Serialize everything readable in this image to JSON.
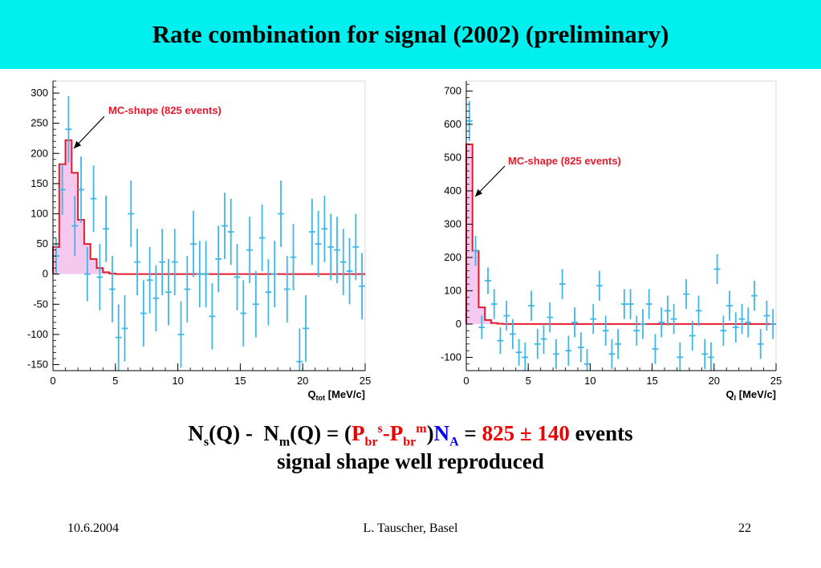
{
  "title": "Rate combination for signal (2002) (preliminary)",
  "formula": {
    "ns": "N",
    "ns_sub": "s",
    "ns_q": "(Q) -  ",
    "nm": "N",
    "nm_sub": "m",
    "nm_q": "(Q) = (",
    "p1": "P",
    "p1_sub": "br",
    "p1_sup": "s",
    "dash": "-",
    "p2": "P",
    "p2_sub": "br",
    "p2_sup": "m",
    "close": ")",
    "na": "N",
    "na_sub": "A",
    "eq": " = ",
    "value": "825 ± 140",
    "unit": " events"
  },
  "subline": "signal shape well reproduced",
  "footer": {
    "date": "10.6.2004",
    "author": "L. Tauscher, Basel",
    "page": "22"
  },
  "colors": {
    "title_bg": "#00f0f0",
    "data": "#3cb8e8",
    "mc_line": "#e8192c",
    "mc_fill": "#f5c8f0"
  },
  "chart_data": [
    {
      "type": "histogram",
      "xlabel_main": "Q",
      "xlabel_sub": "tot",
      "xlabel_unit": " [MeV/c]",
      "xlim": [
        0,
        25
      ],
      "ylim": [
        -160,
        320
      ],
      "xticks": [
        0,
        5,
        10,
        15,
        20,
        25
      ],
      "yticks": [
        300,
        250,
        200,
        150,
        100,
        50,
        0,
        -50,
        -100,
        -150
      ],
      "bin_width": 0.5,
      "annotation": "MC-shape (825 events)",
      "mc_shape": [
        {
          "x": 0.0,
          "y": 45
        },
        {
          "x": 0.5,
          "y": 182
        },
        {
          "x": 1.0,
          "y": 222
        },
        {
          "x": 1.5,
          "y": 168
        },
        {
          "x": 2.0,
          "y": 90
        },
        {
          "x": 2.5,
          "y": 50
        },
        {
          "x": 3.0,
          "y": 25
        },
        {
          "x": 3.5,
          "y": 10
        },
        {
          "x": 4.0,
          "y": 3
        },
        {
          "x": 4.5,
          "y": 1
        }
      ],
      "data": [
        {
          "x": 0.25,
          "y": 30,
          "e": 30
        },
        {
          "x": 0.75,
          "y": 140,
          "e": 42
        },
        {
          "x": 1.25,
          "y": 240,
          "e": 55
        },
        {
          "x": 1.75,
          "y": 80,
          "e": 50
        },
        {
          "x": 2.25,
          "y": 140,
          "e": 55
        },
        {
          "x": 2.75,
          "y": 0,
          "e": 45
        },
        {
          "x": 3.25,
          "y": 125,
          "e": 55
        },
        {
          "x": 3.75,
          "y": -5,
          "e": 55
        },
        {
          "x": 4.25,
          "y": 75,
          "e": 55
        },
        {
          "x": 4.75,
          "y": -25,
          "e": 55
        },
        {
          "x": 5.25,
          "y": -105,
          "e": 55
        },
        {
          "x": 5.75,
          "y": -90,
          "e": 55
        },
        {
          "x": 6.25,
          "y": 100,
          "e": 55
        },
        {
          "x": 6.75,
          "y": 20,
          "e": 55
        },
        {
          "x": 7.25,
          "y": -65,
          "e": 55
        },
        {
          "x": 7.75,
          "y": -10,
          "e": 55
        },
        {
          "x": 8.25,
          "y": -40,
          "e": 55
        },
        {
          "x": 8.75,
          "y": 20,
          "e": 55
        },
        {
          "x": 9.25,
          "y": -30,
          "e": 55
        },
        {
          "x": 9.75,
          "y": 20,
          "e": 55
        },
        {
          "x": 10.25,
          "y": -100,
          "e": 55
        },
        {
          "x": 10.75,
          "y": -25,
          "e": 55
        },
        {
          "x": 11.25,
          "y": 50,
          "e": 55
        },
        {
          "x": 11.75,
          "y": 0,
          "e": 55
        },
        {
          "x": 12.25,
          "y": 0,
          "e": 55
        },
        {
          "x": 12.75,
          "y": -70,
          "e": 55
        },
        {
          "x": 13.25,
          "y": 25,
          "e": 55
        },
        {
          "x": 13.75,
          "y": 80,
          "e": 55
        },
        {
          "x": 14.25,
          "y": 70,
          "e": 55
        },
        {
          "x": 14.75,
          "y": -5,
          "e": 55
        },
        {
          "x": 15.25,
          "y": -65,
          "e": 55
        },
        {
          "x": 15.75,
          "y": 40,
          "e": 55
        },
        {
          "x": 16.25,
          "y": -50,
          "e": 55
        },
        {
          "x": 16.75,
          "y": 60,
          "e": 55
        },
        {
          "x": 17.25,
          "y": -30,
          "e": 55
        },
        {
          "x": 17.75,
          "y": 0,
          "e": 55
        },
        {
          "x": 18.25,
          "y": 100,
          "e": 55
        },
        {
          "x": 18.75,
          "y": -25,
          "e": 55
        },
        {
          "x": 19.25,
          "y": 28,
          "e": 55
        },
        {
          "x": 19.75,
          "y": -145,
          "e": 55
        },
        {
          "x": 20.25,
          "y": -90,
          "e": 55
        },
        {
          "x": 20.75,
          "y": 70,
          "e": 55
        },
        {
          "x": 21.25,
          "y": 50,
          "e": 55
        },
        {
          "x": 21.75,
          "y": 75,
          "e": 55
        },
        {
          "x": 22.25,
          "y": 45,
          "e": 55
        },
        {
          "x": 22.75,
          "y": 40,
          "e": 55
        },
        {
          "x": 23.25,
          "y": 20,
          "e": 55
        },
        {
          "x": 23.75,
          "y": 5,
          "e": 55
        },
        {
          "x": 24.25,
          "y": 45,
          "e": 55
        },
        {
          "x": 24.75,
          "y": -20,
          "e": 55
        }
      ]
    },
    {
      "type": "histogram",
      "xlabel_main": "Q",
      "xlabel_sub": "l",
      "xlabel_unit": " [MeV/c]",
      "xlim": [
        0,
        25
      ],
      "ylim": [
        -140,
        730
      ],
      "xticks": [
        0,
        5,
        10,
        15,
        20,
        25
      ],
      "yticks": [
        700,
        600,
        500,
        400,
        300,
        200,
        100,
        0,
        -100
      ],
      "bin_width": 0.5,
      "annotation": "MC-shape (825 events)",
      "mc_shape": [
        {
          "x": 0.0,
          "y": 540
        },
        {
          "x": 0.5,
          "y": 220
        },
        {
          "x": 1.0,
          "y": 50
        },
        {
          "x": 1.5,
          "y": 12
        },
        {
          "x": 2.0,
          "y": 3
        },
        {
          "x": 2.5,
          "y": 1
        }
      ],
      "data": [
        {
          "x": 0.25,
          "y": 610,
          "e": 60
        },
        {
          "x": 0.75,
          "y": 220,
          "e": 45
        },
        {
          "x": 1.25,
          "y": -10,
          "e": 35
        },
        {
          "x": 1.75,
          "y": 130,
          "e": 40
        },
        {
          "x": 2.25,
          "y": 60,
          "e": 45
        },
        {
          "x": 2.75,
          "y": -50,
          "e": 40
        },
        {
          "x": 3.25,
          "y": 25,
          "e": 45
        },
        {
          "x": 3.75,
          "y": -30,
          "e": 45
        },
        {
          "x": 4.25,
          "y": -85,
          "e": 40
        },
        {
          "x": 4.75,
          "y": -100,
          "e": 45
        },
        {
          "x": 5.25,
          "y": 55,
          "e": 45
        },
        {
          "x": 5.75,
          "y": -60,
          "e": 45
        },
        {
          "x": 6.25,
          "y": -45,
          "e": 45
        },
        {
          "x": 6.75,
          "y": 20,
          "e": 45
        },
        {
          "x": 7.25,
          "y": -90,
          "e": 45
        },
        {
          "x": 7.75,
          "y": 120,
          "e": 45
        },
        {
          "x": 8.25,
          "y": -80,
          "e": 45
        },
        {
          "x": 8.75,
          "y": 5,
          "e": 45
        },
        {
          "x": 9.25,
          "y": -70,
          "e": 45
        },
        {
          "x": 9.75,
          "y": -120,
          "e": 45
        },
        {
          "x": 10.25,
          "y": 15,
          "e": 45
        },
        {
          "x": 10.75,
          "y": 115,
          "e": 45
        },
        {
          "x": 11.25,
          "y": -20,
          "e": 45
        },
        {
          "x": 11.75,
          "y": -90,
          "e": 45
        },
        {
          "x": 12.25,
          "y": -60,
          "e": 45
        },
        {
          "x": 12.75,
          "y": 60,
          "e": 45
        },
        {
          "x": 13.25,
          "y": 60,
          "e": 45
        },
        {
          "x": 13.75,
          "y": -20,
          "e": 45
        },
        {
          "x": 14.25,
          "y": 0,
          "e": 45
        },
        {
          "x": 14.75,
          "y": 60,
          "e": 45
        },
        {
          "x": 15.25,
          "y": -75,
          "e": 45
        },
        {
          "x": 15.75,
          "y": 5,
          "e": 45
        },
        {
          "x": 16.25,
          "y": 40,
          "e": 45
        },
        {
          "x": 16.75,
          "y": 15,
          "e": 45
        },
        {
          "x": 17.25,
          "y": -100,
          "e": 45
        },
        {
          "x": 17.75,
          "y": 90,
          "e": 45
        },
        {
          "x": 18.25,
          "y": -35,
          "e": 45
        },
        {
          "x": 18.75,
          "y": 40,
          "e": 45
        },
        {
          "x": 19.25,
          "y": -90,
          "e": 45
        },
        {
          "x": 19.75,
          "y": -100,
          "e": 45
        },
        {
          "x": 20.25,
          "y": 165,
          "e": 45
        },
        {
          "x": 20.75,
          "y": -20,
          "e": 45
        },
        {
          "x": 21.25,
          "y": 55,
          "e": 45
        },
        {
          "x": 21.75,
          "y": -10,
          "e": 45
        },
        {
          "x": 22.25,
          "y": 15,
          "e": 45
        },
        {
          "x": 22.75,
          "y": 5,
          "e": 45
        },
        {
          "x": 23.25,
          "y": 85,
          "e": 45
        },
        {
          "x": 23.75,
          "y": -60,
          "e": 45
        },
        {
          "x": 24.25,
          "y": 25,
          "e": 45
        },
        {
          "x": 24.75,
          "y": 0,
          "e": 45
        }
      ]
    }
  ]
}
